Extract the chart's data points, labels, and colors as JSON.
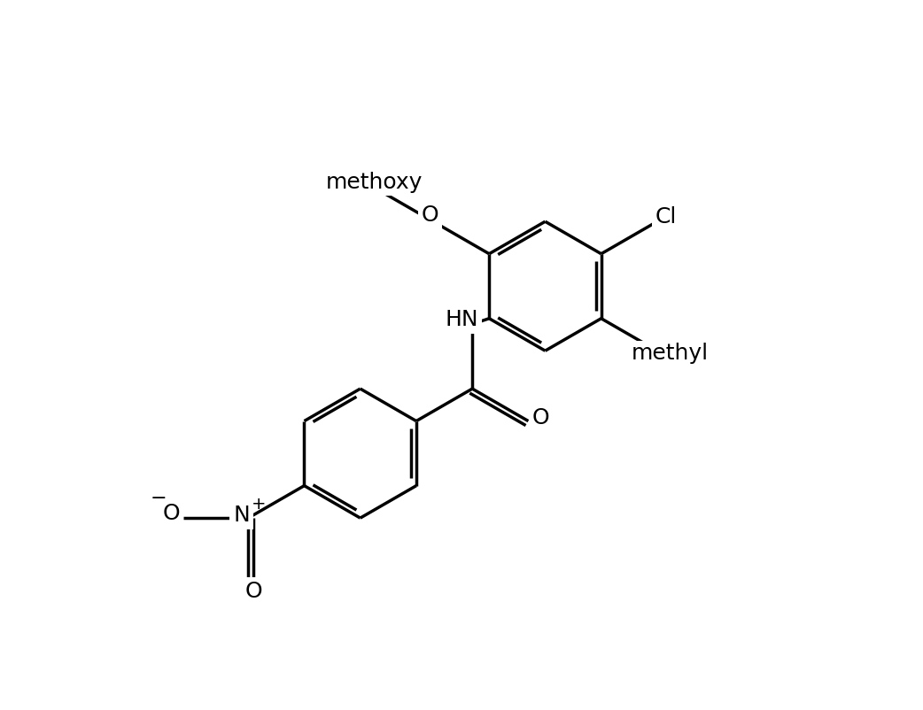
{
  "background_color": "#ffffff",
  "line_color": "#000000",
  "line_width": 2.5,
  "font_size": 18,
  "figsize": [
    10.42,
    8.02
  ],
  "dpi": 100,
  "xlim": [
    -1.0,
    11.0
  ],
  "ylim": [
    -7.5,
    5.0
  ]
}
